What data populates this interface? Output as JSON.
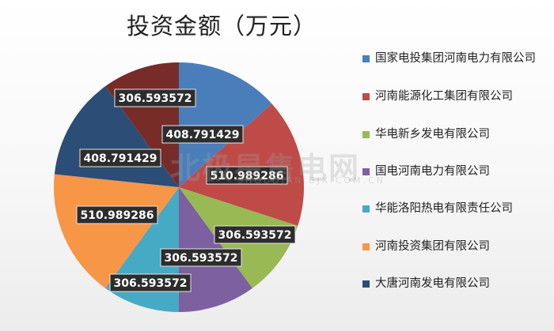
{
  "chart_data": {
    "type": "pie",
    "title": "投资金额（万元）",
    "legend_position": "right",
    "slices": [
      {
        "name": "国家电投集团河南电力有限公司",
        "value": 408.791429,
        "label": "408.791429",
        "color": "#4A7EBB"
      },
      {
        "name": "河南能源化工集团有限公司",
        "value": 510.989286,
        "label": "510.989286",
        "color": "#BE4B48"
      },
      {
        "name": "华电新乡发电有限公司",
        "value": 306.593572,
        "label": "306.593572",
        "color": "#98B954"
      },
      {
        "name": "国电河南电力有限公司",
        "value": 306.593572,
        "label": "306.593572",
        "color": "#7D60A0"
      },
      {
        "name": "华能洛阳热电有限责任公司",
        "value": 306.593572,
        "label": "306.593572",
        "color": "#46AAC5"
      },
      {
        "name": "河南投资集团有限公司",
        "value": 510.989286,
        "label": "510.989286",
        "color": "#F79646"
      },
      {
        "name": "大唐河南发电有限公司",
        "value": 408.791429,
        "label": "408.791429",
        "color": "#2C4D75"
      },
      {
        "name": "",
        "value": 306.593572,
        "label": "306.593572",
        "color": "#772C2A"
      }
    ]
  },
  "watermark": {
    "text": "北极星售电网",
    "sub": "SHOUDIAN.BJX.COM.CN"
  }
}
